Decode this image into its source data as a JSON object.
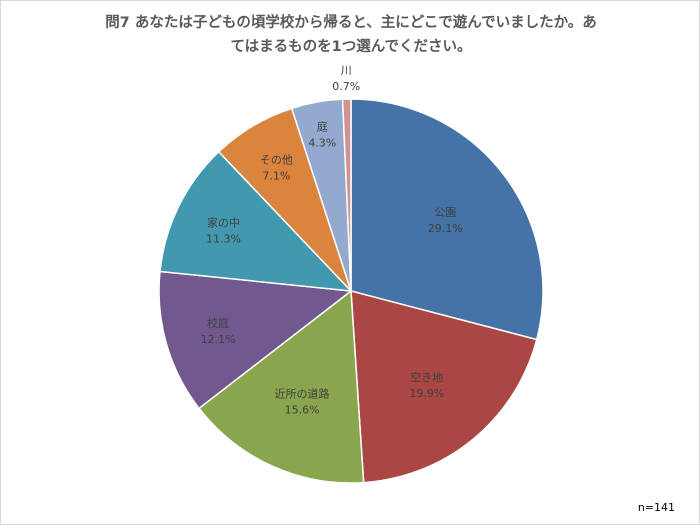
{
  "chart_data": {
    "type": "pie",
    "title_line1": "問7  あなたは子どもの頃学校から帰ると、主にどこで遊んでいましたか。あ",
    "title_line2": "てはまるものを1つ選んでください。",
    "note": "n=141",
    "slices": [
      {
        "label": "公園",
        "value": 29.1,
        "display": "29.1%",
        "color": "#4572A7"
      },
      {
        "label": "空き地",
        "value": 19.9,
        "display": "19.9%",
        "color": "#AA4643"
      },
      {
        "label": "近所の道路",
        "value": 15.6,
        "display": "15.6%",
        "color": "#89A54E"
      },
      {
        "label": "校庭",
        "value": 12.1,
        "display": "12.1%",
        "color": "#71588F"
      },
      {
        "label": "家の中",
        "value": 11.3,
        "display": "11.3%",
        "color": "#4198AF"
      },
      {
        "label": "その他",
        "value": 7.1,
        "display": "7.1%",
        "color": "#DB843D"
      },
      {
        "label": "庭",
        "value": 4.3,
        "display": "4.3%",
        "color": "#93A9CF"
      },
      {
        "label": "川",
        "value": 0.7,
        "display": "0.7%",
        "color": "#D19392"
      }
    ]
  }
}
